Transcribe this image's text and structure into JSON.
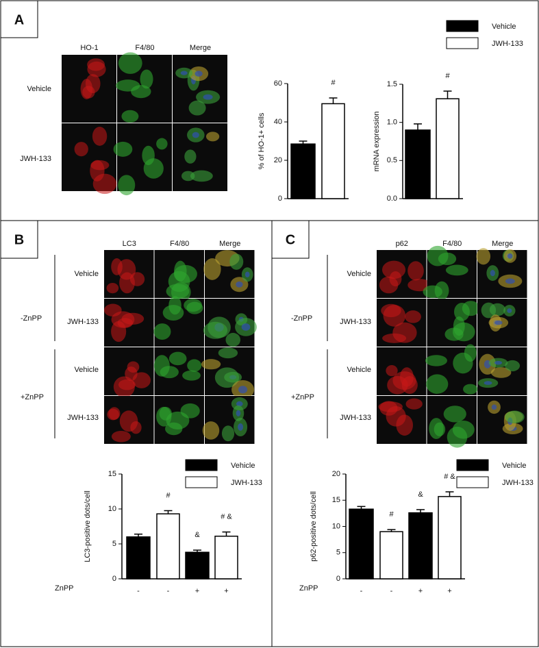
{
  "panels": [
    {
      "label": "A",
      "column_headers": [
        "HO-1",
        "F4/80",
        "Merge"
      ],
      "row_labels": [
        "Vehicle",
        "JWH-133"
      ]
    },
    {
      "label": "B",
      "column_headers": [
        "LC3",
        "F4/80",
        "Merge"
      ],
      "group_labels": [
        "-ZnPP",
        "+ZnPP"
      ],
      "row_labels": [
        "Vehicle",
        "JWH-133",
        "Vehicle",
        "JWH-133"
      ]
    },
    {
      "label": "C",
      "column_headers": [
        "p62",
        "F4/80",
        "Merge"
      ],
      "group_labels": [
        "-ZnPP",
        "+ZnPP"
      ],
      "row_labels": [
        "Vehicle",
        "JWH-133",
        "Vehicle",
        "JWH-133"
      ]
    }
  ],
  "chart_data": [
    {
      "type": "bar",
      "y_label": "% of HO-1+ cells",
      "categories": [
        null
      ],
      "ylim": [
        0,
        60
      ],
      "yticks": [
        0,
        20,
        40,
        60
      ],
      "legend": true,
      "series": [
        {
          "name": "Vehicle",
          "color": "#000000",
          "values": [
            28.5
          ],
          "errors": [
            1.5
          ],
          "annotations": [
            null
          ]
        },
        {
          "name": "JWH-133",
          "color": "#ffffff",
          "values": [
            49.5
          ],
          "errors": [
            3
          ],
          "annotations": [
            "#"
          ]
        }
      ]
    },
    {
      "type": "bar",
      "y_label": "mRNA expression",
      "categories": [
        null
      ],
      "ylim": [
        0,
        1.5
      ],
      "yticks": [
        {
          "value": 0,
          "label": "0.0"
        },
        {
          "value": 0.5,
          "label": "0.5"
        },
        {
          "value": 1,
          "label": "1.0"
        },
        {
          "value": 1.5,
          "label": "1.5"
        }
      ],
      "legend": false,
      "series": [
        {
          "color": "#000000",
          "values": [
            0.9
          ],
          "errors": [
            0.08
          ],
          "annotations": [
            null
          ]
        },
        {
          "color": "#ffffff",
          "values": [
            1.31
          ],
          "errors": [
            0.1
          ],
          "annotations": [
            "#"
          ]
        }
      ]
    },
    {
      "type": "bar",
      "y_label": "LC3-positive dots/cell",
      "x_label": "ZnPP",
      "categories": [
        "-",
        "-",
        "+",
        "+"
      ],
      "ylim": [
        0,
        15
      ],
      "yticks": [
        0,
        5,
        10,
        15
      ],
      "legend": true,
      "series": [
        {
          "name": "Vehicle",
          "color": "#000000",
          "values": [
            6.0,
            null,
            3.8,
            null
          ],
          "errors": [
            0.4,
            null,
            0.3,
            null
          ],
          "annotations": [
            null,
            null,
            "&",
            null
          ]
        },
        {
          "name": "JWH-133",
          "color": "#ffffff",
          "values": [
            null,
            9.3,
            null,
            6.1
          ],
          "errors": [
            null,
            0.45,
            null,
            0.6
          ],
          "annotations": [
            null,
            "#",
            null,
            "# &"
          ]
        }
      ]
    },
    {
      "type": "bar",
      "y_label": "p62-positive dots/cell",
      "x_label": "ZnPP",
      "categories": [
        "-",
        "-",
        "+",
        "+"
      ],
      "ylim": [
        0,
        20
      ],
      "yticks": [
        0,
        5,
        10,
        15,
        20
      ],
      "legend": true,
      "series": [
        {
          "name": "Vehicle",
          "color": "#000000",
          "values": [
            13.3,
            null,
            12.6,
            null
          ],
          "errors": [
            0.5,
            null,
            0.6,
            null
          ],
          "annotations": [
            null,
            null,
            "&",
            null
          ]
        },
        {
          "name": "JWH-133",
          "color": "#ffffff",
          "values": [
            null,
            9.0,
            null,
            15.7
          ],
          "errors": [
            null,
            0.4,
            null,
            0.9
          ],
          "annotations": [
            null,
            "#",
            null,
            "# &"
          ]
        }
      ]
    }
  ]
}
